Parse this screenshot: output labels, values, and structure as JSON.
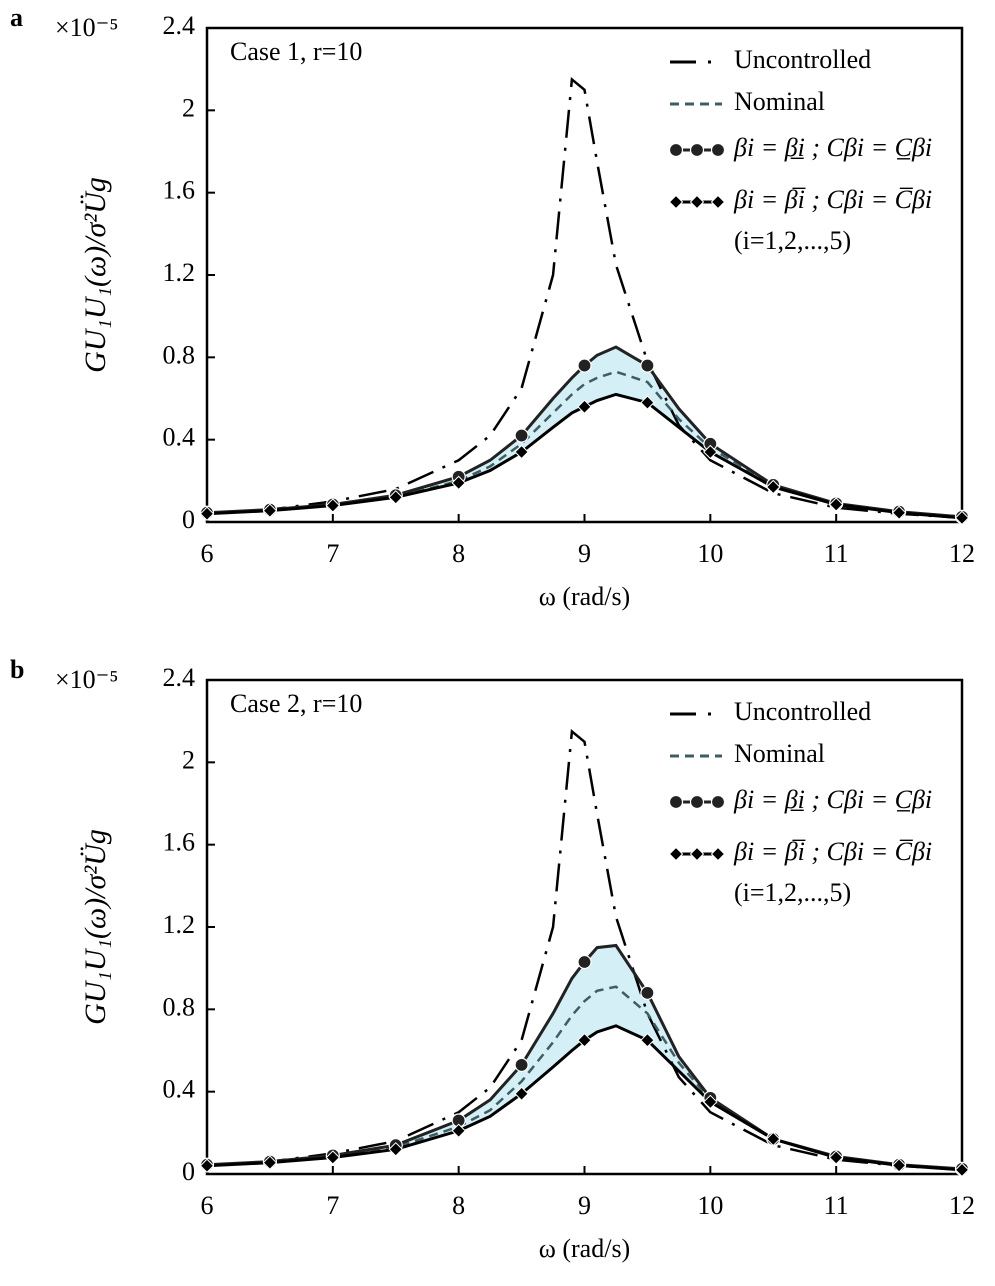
{
  "chart_data": [
    {
      "type": "line",
      "panel_label": "a",
      "annotation": "Case 1, r=10",
      "y_multiplier": "×10⁻⁵",
      "ylabel": "GU₁U₁(ω)/σ²Üg",
      "xlabel": "ω (rad/s)",
      "legend_note": "(i=1,2,...,5)",
      "band_color": "#d4f0f6",
      "xlim": [
        6,
        12
      ],
      "ylim": [
        0,
        2.4
      ],
      "xticks": [
        6,
        7,
        8,
        9,
        10,
        11,
        12
      ],
      "yticks": [
        0,
        0.4,
        0.8,
        1.2,
        1.6,
        2,
        2.4
      ],
      "x": [
        6,
        6.5,
        7,
        7.5,
        8,
        8.25,
        8.5,
        8.75,
        8.9,
        9,
        9.1,
        9.25,
        9.5,
        9.75,
        10,
        10.5,
        11,
        11.5,
        12
      ],
      "series": [
        {
          "name": "Uncontrolled",
          "color": "#000000",
          "dash": "dashdot",
          "values": [
            0.04,
            0.06,
            0.1,
            0.16,
            0.3,
            0.42,
            0.65,
            1.2,
            2.15,
            2.1,
            1.75,
            1.25,
            0.78,
            0.47,
            0.3,
            0.14,
            0.07,
            0.04,
            0.02
          ]
        },
        {
          "name": "Nominal",
          "color": "#3f5c62",
          "dash": "dashed",
          "values": [
            0.04,
            0.055,
            0.08,
            0.12,
            0.2,
            0.27,
            0.38,
            0.53,
            0.62,
            0.67,
            0.7,
            0.73,
            0.68,
            0.5,
            0.36,
            0.18,
            0.09,
            0.05,
            0.025
          ]
        },
        {
          "name": "βi = β̲i ; Cβi = C̲βi",
          "color": "#222222",
          "dash": "solid",
          "marker": "circle",
          "values": [
            0.045,
            0.06,
            0.085,
            0.13,
            0.22,
            0.3,
            0.42,
            0.6,
            0.7,
            0.76,
            0.81,
            0.85,
            0.76,
            0.55,
            0.38,
            0.18,
            0.09,
            0.05,
            0.025
          ]
        },
        {
          "name": "βi = β̅i ; Cβi = C̅βi",
          "color": "#000000",
          "dash": "solid",
          "marker": "diamond",
          "values": [
            0.04,
            0.055,
            0.08,
            0.12,
            0.19,
            0.25,
            0.34,
            0.46,
            0.53,
            0.56,
            0.59,
            0.62,
            0.58,
            0.46,
            0.34,
            0.17,
            0.085,
            0.045,
            0.02
          ]
        }
      ]
    },
    {
      "type": "line",
      "panel_label": "b",
      "annotation": "Case 2, r=10",
      "y_multiplier": "×10⁻⁵",
      "ylabel": "GU₁U₁(ω)/σ²Üg",
      "xlabel": "ω (rad/s)",
      "legend_note": "(i=1,2,...,5)",
      "band_color": "#d4f0f6",
      "xlim": [
        6,
        12
      ],
      "ylim": [
        0,
        2.4
      ],
      "xticks": [
        6,
        7,
        8,
        9,
        10,
        11,
        12
      ],
      "yticks": [
        0,
        0.4,
        0.8,
        1.2,
        1.6,
        2,
        2.4
      ],
      "x": [
        6,
        6.5,
        7,
        7.5,
        8,
        8.25,
        8.5,
        8.75,
        8.9,
        9,
        9.1,
        9.25,
        9.5,
        9.75,
        10,
        10.5,
        11,
        11.5,
        12
      ],
      "series": [
        {
          "name": "Uncontrolled",
          "color": "#000000",
          "dash": "dashdot",
          "values": [
            0.04,
            0.06,
            0.1,
            0.16,
            0.3,
            0.42,
            0.65,
            1.2,
            2.15,
            2.1,
            1.75,
            1.25,
            0.78,
            0.47,
            0.3,
            0.14,
            0.07,
            0.04,
            0.02
          ]
        },
        {
          "name": "Nominal",
          "color": "#3f5c62",
          "dash": "dashed",
          "values": [
            0.04,
            0.055,
            0.085,
            0.13,
            0.23,
            0.31,
            0.45,
            0.64,
            0.77,
            0.84,
            0.89,
            0.91,
            0.78,
            0.54,
            0.36,
            0.17,
            0.085,
            0.045,
            0.022
          ]
        },
        {
          "name": "βi = β̲i ; Cβi = C̲βi",
          "color": "#222222",
          "dash": "solid",
          "marker": "circle",
          "values": [
            0.045,
            0.06,
            0.09,
            0.14,
            0.26,
            0.36,
            0.53,
            0.78,
            0.95,
            1.03,
            1.1,
            1.11,
            0.88,
            0.57,
            0.37,
            0.17,
            0.085,
            0.045,
            0.025
          ]
        },
        {
          "name": "βi = β̅i ; Cβi = C̅βi",
          "color": "#000000",
          "dash": "solid",
          "marker": "diamond",
          "values": [
            0.04,
            0.055,
            0.08,
            0.12,
            0.21,
            0.28,
            0.39,
            0.52,
            0.6,
            0.65,
            0.69,
            0.72,
            0.65,
            0.5,
            0.35,
            0.17,
            0.08,
            0.042,
            0.02
          ]
        }
      ]
    }
  ]
}
